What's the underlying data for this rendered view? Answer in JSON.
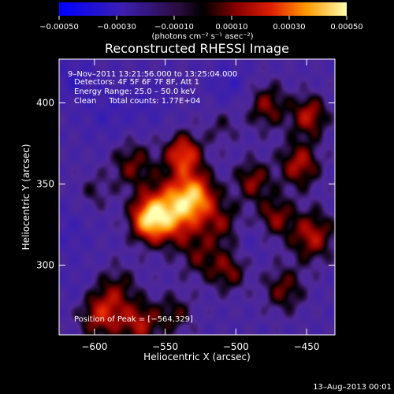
{
  "chart_data": {
    "type": "heatmap",
    "title": "Reconstructed RHESSI Image",
    "xlabel": "Heliocentric X (arcsec)",
    "ylabel": "Heliocentric Y (arcsec)",
    "xlim": [
      -625,
      -430
    ],
    "ylim": [
      257,
      427
    ],
    "x_ticks": [
      -600,
      -550,
      -500,
      -450
    ],
    "x_tick_labels": [
      "−600",
      "−550",
      "−500",
      "−450"
    ],
    "y_ticks": [
      300,
      350,
      400
    ],
    "y_tick_labels": [
      "300",
      "350",
      "400"
    ],
    "colorbar": {
      "range": [
        -0.0005,
        0.0005
      ],
      "ticks": [
        -0.0005,
        -0.0003,
        -0.0001,
        0.0001,
        0.0003,
        0.0005
      ],
      "tick_labels": [
        "−0.00050",
        "−0.00030",
        "−0.00010",
        "0.00010",
        "0.00030",
        "0.00050"
      ],
      "unit_label": "(photons cm⁻² s⁻¹ asec⁻²)"
    },
    "annotations": {
      "time_range": "9–Nov–2011 13:21:56.000 to 13:25:04.000",
      "detectors": "Detectors: 4F 5F 6F 7F 8F, Att 1",
      "energy": "Energy Range: 25.0 – 50.0 keV",
      "clean": "Clean     Total counts: 1.77E+04",
      "peak": "Position of Peak = [−564,329]"
    },
    "peak_position": [
      -564,
      329
    ],
    "sources": [
      {
        "x": -545,
        "y": 333,
        "amplitude": 0.0005,
        "sigma": 13
      },
      {
        "x": -562,
        "y": 328,
        "amplitude": 0.00045,
        "sigma": 9
      },
      {
        "x": -528,
        "y": 343,
        "amplitude": 0.0004,
        "sigma": 10
      },
      {
        "x": -537,
        "y": 368,
        "amplitude": 0.0004,
        "sigma": 9
      },
      {
        "x": -573,
        "y": 362,
        "amplitude": 0.00022,
        "sigma": 11
      },
      {
        "x": -510,
        "y": 326,
        "amplitude": 0.0002,
        "sigma": 10
      },
      {
        "x": -505,
        "y": 296,
        "amplitude": 0.00022,
        "sigma": 9
      },
      {
        "x": -525,
        "y": 305,
        "amplitude": 0.00018,
        "sigma": 10
      },
      {
        "x": -583,
        "y": 287,
        "amplitude": 0.00015,
        "sigma": 10
      },
      {
        "x": -600,
        "y": 345,
        "amplitude": 0.00012,
        "sigma": 8
      },
      {
        "x": -488,
        "y": 352,
        "amplitude": 0.00025,
        "sigma": 9
      },
      {
        "x": -478,
        "y": 398,
        "amplitude": 0.00024,
        "sigma": 10
      },
      {
        "x": -455,
        "y": 362,
        "amplitude": 0.0003,
        "sigma": 10
      },
      {
        "x": -448,
        "y": 392,
        "amplitude": 0.0003,
        "sigma": 9
      },
      {
        "x": -446,
        "y": 318,
        "amplitude": 0.0003,
        "sigma": 11
      },
      {
        "x": -472,
        "y": 330,
        "amplitude": 0.00024,
        "sigma": 9
      },
      {
        "x": -466,
        "y": 285,
        "amplitude": 0.00022,
        "sigma": 10
      },
      {
        "x": -595,
        "y": 270,
        "amplitude": 0.00032,
        "sigma": 11
      },
      {
        "x": -568,
        "y": 264,
        "amplitude": 0.00028,
        "sigma": 10
      },
      {
        "x": -543,
        "y": 270,
        "amplitude": 0.00018,
        "sigma": 9
      },
      {
        "x": -510,
        "y": 385,
        "amplitude": 0.00012,
        "sigma": 8
      },
      {
        "x": -590,
        "y": 395,
        "amplitude": -0.0001,
        "sigma": 14
      },
      {
        "x": -615,
        "y": 415,
        "amplitude": -0.00012,
        "sigma": 10
      },
      {
        "x": -620,
        "y": 320,
        "amplitude": -8e-05,
        "sigma": 12
      },
      {
        "x": -505,
        "y": 412,
        "amplitude": -0.00012,
        "sigma": 10
      },
      {
        "x": -560,
        "y": 400,
        "amplitude": -8e-05,
        "sigma": 10
      },
      {
        "x": -490,
        "y": 315,
        "amplitude": -6e-05,
        "sigma": 7
      },
      {
        "x": -612,
        "y": 285,
        "amplitude": -6e-05,
        "sigma": 9
      }
    ]
  },
  "footer": {
    "date": "13–Aug–2013 00:01"
  }
}
